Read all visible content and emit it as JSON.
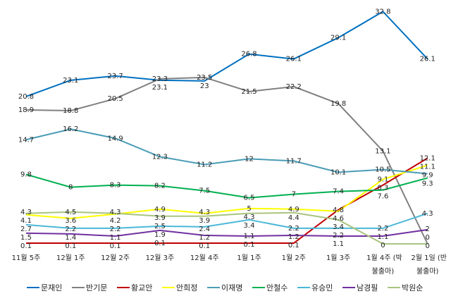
{
  "chart_data": {
    "type": "line",
    "categories": [
      [
        "11월 5주"
      ],
      [
        "12월 1주"
      ],
      [
        "12월 2주"
      ],
      [
        "12월 3주"
      ],
      [
        "12월 4주"
      ],
      [
        "1월 1주"
      ],
      [
        "1월 2주"
      ],
      [
        "1월 3주"
      ],
      [
        "1월 4주 (박",
        "불출마)"
      ],
      [
        "2월 1일 (반",
        "불출마)"
      ]
    ],
    "ylim": [
      0,
      33
    ],
    "grid": false,
    "legend": "bottom",
    "series": [
      {
        "name": "문재인",
        "color": "#0070C0",
        "values": [
          20.8,
          23.1,
          23.7,
          23.1,
          23,
          26.8,
          26.1,
          29.1,
          32.8,
          26.1
        ]
      },
      {
        "name": "반기문",
        "color": "#808080",
        "values": [
          18.9,
          18.8,
          20.5,
          23.3,
          23.5,
          21.5,
          22.2,
          19.8,
          13.1,
          0
        ]
      },
      {
        "name": "황교안",
        "color": "#C00000",
        "values": [
          0.1,
          0.1,
          0.1,
          0.1,
          0.1,
          0.1,
          0.1,
          4.8,
          8.3,
          12.1
        ]
      },
      {
        "name": "안희정",
        "color": "#FFFF00",
        "values": [
          4.1,
          3.6,
          4.2,
          4.9,
          4.3,
          5,
          4.9,
          4.6,
          9.1,
          11.1
        ]
      },
      {
        "name": "이재명",
        "color": "#4A9CB6",
        "values": [
          14.7,
          16.2,
          14.9,
          12.3,
          11.2,
          12,
          11.7,
          10.1,
          10.5,
          9.9
        ]
      },
      {
        "name": "안철수",
        "color": "#00B050",
        "values": [
          9.8,
          8,
          8.3,
          8.2,
          7.5,
          6.5,
          7,
          7.4,
          7.6,
          9.3
        ]
      },
      {
        "name": "유승민",
        "color": "#4BB8D8",
        "values": [
          2.7,
          2.2,
          2.2,
          2.5,
          2.4,
          3.4,
          2.2,
          2.2,
          2.2,
          4.3
        ]
      },
      {
        "name": "남경필",
        "color": "#7030A0",
        "values": [
          1.5,
          1.4,
          1.1,
          1.9,
          1.2,
          1.1,
          1.2,
          1.1,
          1.1,
          2
        ]
      },
      {
        "name": "박원순",
        "color": "#A9C47F",
        "values": [
          4.3,
          4.5,
          4.3,
          3.9,
          3.9,
          4.3,
          4.4,
          3.4,
          0,
          0
        ]
      }
    ]
  }
}
